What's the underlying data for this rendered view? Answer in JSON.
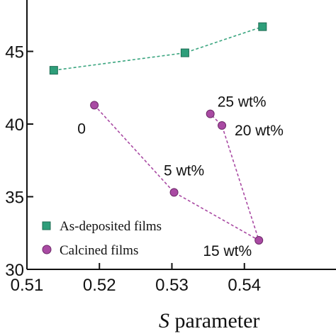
{
  "chart_data": {
    "type": "line",
    "xlabel_italic": "S",
    "xlabel_rest": " parameter",
    "ylabel": "",
    "xlim": [
      0.51,
      0.542
    ],
    "ylim": [
      30,
      47.5
    ],
    "x_ticks": [
      0.51,
      0.52,
      0.53,
      0.54
    ],
    "x_tick_labels": [
      "0.51",
      "0.52",
      "0.53",
      "0.54"
    ],
    "y_ticks": [
      30,
      35,
      40,
      45
    ],
    "y_tick_labels": [
      "30",
      "35",
      "40",
      "45"
    ],
    "grid": false,
    "legend_position": "bottom-left",
    "series": [
      {
        "name": "As-deposited films",
        "marker": "square",
        "color": "#2e9e7a",
        "line_color": "#3aa57f",
        "points": [
          {
            "x": 0.5137,
            "y": 43.7
          },
          {
            "x": 0.5318,
            "y": 44.9
          },
          {
            "x": 0.5425,
            "y": 46.7
          }
        ]
      },
      {
        "name": "Calcined films",
        "marker": "circle",
        "color": "#a94aa3",
        "line_color": "#a94aa3",
        "points": [
          {
            "x": 0.5193,
            "y": 41.3,
            "label": "0"
          },
          {
            "x": 0.5303,
            "y": 35.3,
            "label": "5 wt%"
          },
          {
            "x": 0.542,
            "y": 32.0,
            "label": "15 wt%"
          },
          {
            "x": 0.5369,
            "y": 39.9,
            "label": "20 wt%"
          },
          {
            "x": 0.5353,
            "y": 40.7,
            "label": "25 wt%"
          }
        ]
      }
    ]
  }
}
